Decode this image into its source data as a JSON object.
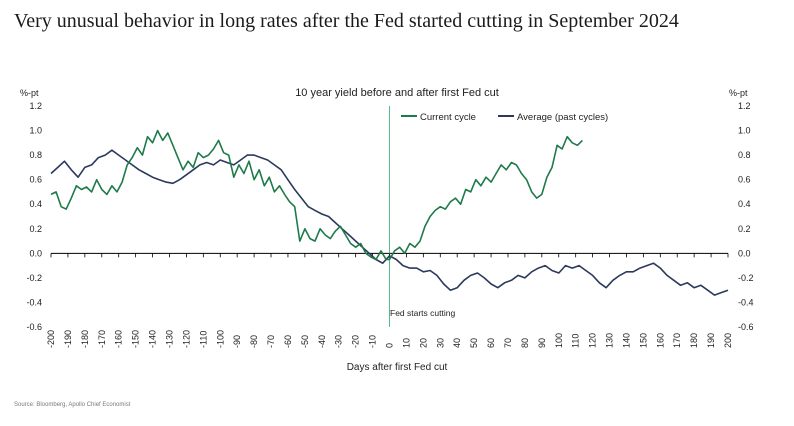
{
  "headline": "Very unusual behavior in long rates after the Fed started cutting in September 2024",
  "source": "Source: Bloomberg, Apollo Chief Economist",
  "chart_data": {
    "type": "line",
    "title": "10 year yield before and after first Fed cut",
    "xlabel": "Days after first Fed cut",
    "ylabel_left": "%-pt",
    "ylabel_right": "%-pt",
    "xlim": [
      -200,
      200
    ],
    "ylim": [
      -0.6,
      1.2
    ],
    "x_ticks": [
      "-200",
      "-190",
      "-180",
      "-170",
      "-160",
      "-150",
      "-140",
      "-130",
      "-120",
      "-110",
      "-100",
      "-90",
      "-80",
      "-70",
      "-60",
      "-50",
      "-40",
      "-30",
      "-20",
      "-10",
      "0",
      "10",
      "20",
      "30",
      "40",
      "50",
      "60",
      "70",
      "80",
      "90",
      "100",
      "110",
      "120",
      "130",
      "140",
      "150",
      "160",
      "170",
      "180",
      "190",
      "200"
    ],
    "y_ticks": [
      "1.2",
      "1.0",
      "0.8",
      "0.6",
      "0.4",
      "0.2",
      "0.0",
      "-0.2",
      "-0.4",
      "-0.6"
    ],
    "grid": false,
    "legend_position": "top-center",
    "colors": {
      "current": "#1f7a4a",
      "average": "#2b3a5c",
      "vline": "#5cb98a",
      "zero": "#000000"
    },
    "annotation": {
      "text": "Fed starts cutting",
      "x": 0
    },
    "series": [
      {
        "name": "Current cycle",
        "x": [
          -200,
          -197,
          -194,
          -191,
          -188,
          -185,
          -182,
          -179,
          -176,
          -173,
          -170,
          -167,
          -164,
          -161,
          -158,
          -155,
          -152,
          -149,
          -146,
          -143,
          -140,
          -137,
          -134,
          -131,
          -128,
          -125,
          -122,
          -119,
          -116,
          -113,
          -110,
          -107,
          -104,
          -101,
          -98,
          -95,
          -92,
          -89,
          -86,
          -83,
          -80,
          -77,
          -74,
          -71,
          -68,
          -65,
          -62,
          -59,
          -56,
          -53,
          -50,
          -47,
          -44,
          -41,
          -38,
          -35,
          -32,
          -29,
          -26,
          -23,
          -20,
          -17,
          -14,
          -11,
          -8,
          -5,
          -2,
          0,
          3,
          6,
          9,
          12,
          15,
          18,
          21,
          24,
          27,
          30,
          33,
          36,
          39,
          42,
          45,
          48,
          51,
          54,
          57,
          60,
          63,
          66,
          69,
          72,
          75,
          78,
          81,
          84,
          87,
          90,
          93,
          96,
          99,
          102,
          105,
          108,
          111,
          114
        ],
        "y": [
          0.48,
          0.5,
          0.38,
          0.36,
          0.45,
          0.55,
          0.52,
          0.54,
          0.5,
          0.6,
          0.52,
          0.48,
          0.55,
          0.5,
          0.58,
          0.72,
          0.78,
          0.86,
          0.8,
          0.95,
          0.9,
          1.0,
          0.92,
          0.98,
          0.88,
          0.78,
          0.68,
          0.75,
          0.7,
          0.82,
          0.78,
          0.8,
          0.85,
          0.92,
          0.82,
          0.8,
          0.62,
          0.72,
          0.65,
          0.75,
          0.6,
          0.68,
          0.55,
          0.62,
          0.5,
          0.55,
          0.48,
          0.42,
          0.38,
          0.1,
          0.2,
          0.12,
          0.1,
          0.2,
          0.15,
          0.12,
          0.18,
          0.22,
          0.15,
          0.08,
          0.05,
          0.08,
          0.0,
          -0.03,
          -0.05,
          0.02,
          -0.05,
          -0.05,
          0.02,
          0.05,
          0.0,
          0.08,
          0.05,
          0.1,
          0.22,
          0.3,
          0.35,
          0.38,
          0.36,
          0.42,
          0.45,
          0.4,
          0.52,
          0.5,
          0.6,
          0.55,
          0.62,
          0.58,
          0.65,
          0.72,
          0.68,
          0.74,
          0.72,
          0.65,
          0.6,
          0.5,
          0.45,
          0.48,
          0.62,
          0.7,
          0.88,
          0.85,
          0.95,
          0.9,
          0.88,
          0.92
        ]
      },
      {
        "name": "Average (past cycles)",
        "x": [
          -200,
          -196,
          -192,
          -188,
          -184,
          -180,
          -176,
          -172,
          -168,
          -164,
          -160,
          -156,
          -152,
          -148,
          -144,
          -140,
          -136,
          -132,
          -128,
          -124,
          -120,
          -116,
          -112,
          -108,
          -104,
          -100,
          -96,
          -92,
          -88,
          -84,
          -80,
          -76,
          -72,
          -68,
          -64,
          -60,
          -56,
          -52,
          -48,
          -44,
          -40,
          -36,
          -32,
          -28,
          -24,
          -20,
          -16,
          -12,
          -8,
          -4,
          0,
          4,
          8,
          12,
          16,
          20,
          24,
          28,
          32,
          36,
          40,
          44,
          48,
          52,
          56,
          60,
          64,
          68,
          72,
          76,
          80,
          84,
          88,
          92,
          96,
          100,
          104,
          108,
          112,
          116,
          120,
          124,
          128,
          132,
          136,
          140,
          144,
          148,
          152,
          156,
          160,
          164,
          168,
          172,
          176,
          180,
          184,
          188,
          192,
          196,
          200
        ],
        "y": [
          0.65,
          0.7,
          0.75,
          0.68,
          0.62,
          0.7,
          0.72,
          0.78,
          0.8,
          0.84,
          0.8,
          0.76,
          0.72,
          0.68,
          0.65,
          0.62,
          0.6,
          0.58,
          0.57,
          0.6,
          0.64,
          0.68,
          0.72,
          0.74,
          0.72,
          0.76,
          0.74,
          0.72,
          0.76,
          0.8,
          0.8,
          0.78,
          0.76,
          0.72,
          0.68,
          0.6,
          0.52,
          0.45,
          0.38,
          0.35,
          0.32,
          0.3,
          0.25,
          0.2,
          0.15,
          0.1,
          0.05,
          0.0,
          -0.05,
          -0.08,
          -0.02,
          -0.05,
          -0.1,
          -0.12,
          -0.12,
          -0.15,
          -0.14,
          -0.18,
          -0.25,
          -0.3,
          -0.28,
          -0.22,
          -0.18,
          -0.16,
          -0.2,
          -0.25,
          -0.28,
          -0.24,
          -0.22,
          -0.18,
          -0.2,
          -0.15,
          -0.12,
          -0.1,
          -0.14,
          -0.16,
          -0.1,
          -0.12,
          -0.1,
          -0.14,
          -0.18,
          -0.24,
          -0.28,
          -0.22,
          -0.18,
          -0.15,
          -0.15,
          -0.12,
          -0.1,
          -0.08,
          -0.12,
          -0.18,
          -0.22,
          -0.26,
          -0.24,
          -0.28,
          -0.26,
          -0.3,
          -0.34,
          -0.32,
          -0.3
        ]
      }
    ]
  }
}
